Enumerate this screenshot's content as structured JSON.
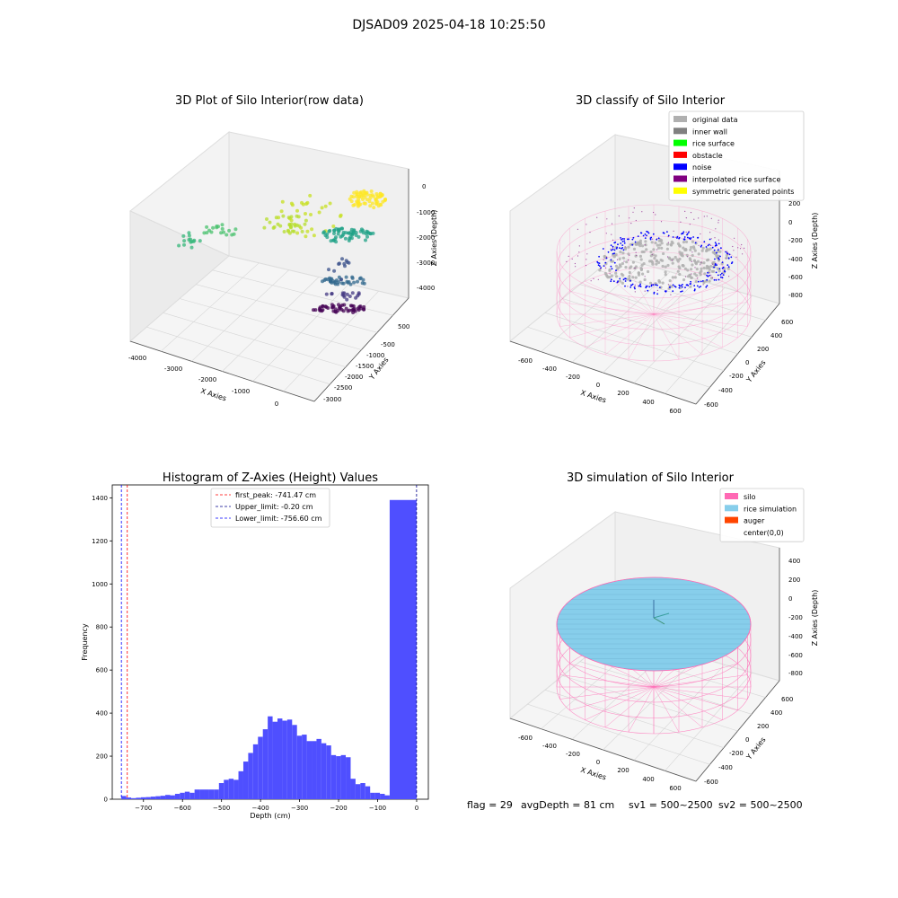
{
  "figure": {
    "suptitle": "DJSAD09 2025-04-18 10:25:50",
    "footer": {
      "flag": "flag = 29",
      "avg_depth": "avgDepth = 81 cm",
      "sv1": "sv1 = 500~2500",
      "sv2": "sv2 = 500~2500"
    }
  },
  "colors": {
    "grey_light": "#b0b0b0",
    "grey_dark": "#808080",
    "green": "#00ff00",
    "red": "#ff0000",
    "blue": "#0000ff",
    "purple": "#800080",
    "yellow": "#ffff00",
    "silo_pink": "#ff69b4",
    "rice_blue": "#87ceeb",
    "auger": "#ff4500",
    "hist_blue": "#4f4fff"
  },
  "chart_data": [
    {
      "type": "scatter3d",
      "title": "3D Plot of Silo Interior(row data)",
      "xlabel": "X Axies",
      "ylabel": "Y Axies",
      "zlabel": "Z Axies (Depth)",
      "xticks": [
        "-4000",
        "-3000",
        "-2000",
        "-1000",
        "0"
      ],
      "yticks": [
        "500",
        "-500",
        "-1000",
        "-1500",
        "-2000",
        "-2500",
        "-3000"
      ],
      "zticks": [
        "0",
        "-1000",
        "-2000",
        "-3000",
        "-4000"
      ],
      "colormap": "viridis"
    },
    {
      "type": "scatter3d",
      "title": "3D classify of Silo Interior",
      "xlabel": "X Axies",
      "ylabel": "Y Axies",
      "zlabel": "Z Axies (Depth)",
      "xticks": [
        "-600",
        "-400",
        "-200",
        "0",
        "200",
        "400",
        "600"
      ],
      "yticks": [
        "600",
        "400",
        "200",
        "0",
        "-200",
        "-400",
        "-600"
      ],
      "zticks": [
        "200",
        "0",
        "-200",
        "-400",
        "-600",
        "-800"
      ],
      "legend": {
        "position": "upper-right",
        "entries": [
          {
            "label": "original data",
            "color": "#b0b0b0"
          },
          {
            "label": "inner wall",
            "color": "#808080"
          },
          {
            "label": "rice surface",
            "color": "#00ff00"
          },
          {
            "label": "obstacle",
            "color": "#ff0000"
          },
          {
            "label": "noise",
            "color": "#0000ff"
          },
          {
            "label": "interpolated rice surface",
            "color": "#800080"
          },
          {
            "label": "symmetric generated points",
            "color": "#ffff00"
          }
        ]
      }
    },
    {
      "type": "bar",
      "title": "Histogram of Z-Axies (Height) Values",
      "xlabel": "Depth (cm)",
      "ylabel": "Frequency",
      "xlim": [
        -780,
        30
      ],
      "ylim": [
        0,
        1460
      ],
      "xticks": [
        -700,
        -600,
        -500,
        -400,
        -300,
        -200,
        -100,
        0
      ],
      "yticks": [
        0,
        200,
        400,
        600,
        800,
        1000,
        1200,
        1400
      ],
      "bin_width": 12.5,
      "bins": [
        [
          -756.6,
          15
        ],
        [
          -744.1,
          8
        ],
        [
          -731.6,
          5
        ],
        [
          -719.1,
          7
        ],
        [
          -706.6,
          9
        ],
        [
          -694.1,
          10
        ],
        [
          -681.6,
          12
        ],
        [
          -669.1,
          14
        ],
        [
          -656.6,
          16
        ],
        [
          -644.1,
          20
        ],
        [
          -631.6,
          18
        ],
        [
          -619.1,
          25
        ],
        [
          -606.6,
          30
        ],
        [
          -594.1,
          35
        ],
        [
          -581.6,
          30
        ],
        [
          -569.1,
          45
        ],
        [
          -556.6,
          45
        ],
        [
          -544.1,
          45
        ],
        [
          -531.6,
          45
        ],
        [
          -519.1,
          45
        ],
        [
          -506.6,
          75
        ],
        [
          -494.1,
          90
        ],
        [
          -481.6,
          95
        ],
        [
          -469.1,
          90
        ],
        [
          -456.6,
          130
        ],
        [
          -444.1,
          175
        ],
        [
          -431.6,
          215
        ],
        [
          -419.1,
          255
        ],
        [
          -406.6,
          290
        ],
        [
          -394.1,
          325
        ],
        [
          -381.6,
          385
        ],
        [
          -369.1,
          360
        ],
        [
          -356.6,
          375
        ],
        [
          -344.1,
          365
        ],
        [
          -331.6,
          370
        ],
        [
          -319.1,
          345
        ],
        [
          -306.6,
          295
        ],
        [
          -294.1,
          300
        ],
        [
          -281.6,
          270
        ],
        [
          -269.1,
          270
        ],
        [
          -256.6,
          280
        ],
        [
          -244.1,
          260
        ],
        [
          -231.6,
          250
        ],
        [
          -219.1,
          205
        ],
        [
          -206.6,
          200
        ],
        [
          -194.1,
          205
        ],
        [
          -181.6,
          195
        ],
        [
          -169.1,
          95
        ],
        [
          -156.6,
          70
        ],
        [
          -144.1,
          75
        ],
        [
          -131.6,
          60
        ],
        [
          -119.1,
          30
        ],
        [
          -106.6,
          30
        ],
        [
          -94.1,
          25
        ],
        [
          -81.6,
          18
        ],
        [
          -69.1,
          1390
        ]
      ],
      "vlines": [
        {
          "label": "first_peak: -741.47 cm",
          "x": -741.47,
          "color": "#ff0000"
        },
        {
          "label": "Upper_limit: -0.20 cm",
          "x": -0.2,
          "color": "#00008b"
        },
        {
          "label": "Lower_limit: -756.60 cm",
          "x": -756.6,
          "color": "#0000ff"
        }
      ],
      "legend": {
        "position": "upper-center"
      }
    },
    {
      "type": "surface3d",
      "title": "3D simulation of Silo Interior",
      "xlabel": "X Axies",
      "ylabel": "Y Axies",
      "zlabel": "Z Axies (Depth)",
      "xticks": [
        "-600",
        "-400",
        "-200",
        "0",
        "200",
        "400",
        "600"
      ],
      "yticks": [
        "600",
        "400",
        "200",
        "0",
        "-200",
        "-400",
        "-600"
      ],
      "zticks": [
        "400",
        "200",
        "0",
        "-200",
        "-400",
        "-600",
        "-800"
      ],
      "legend": {
        "position": "upper-right",
        "entries": [
          {
            "label": "silo",
            "color": "#ff69b4"
          },
          {
            "label": "rice simulation",
            "color": "#87ceeb"
          },
          {
            "label": "auger",
            "color": "#ff4500"
          },
          {
            "label": "center(0,0)",
            "color": "#ffffff"
          }
        ]
      }
    }
  ]
}
